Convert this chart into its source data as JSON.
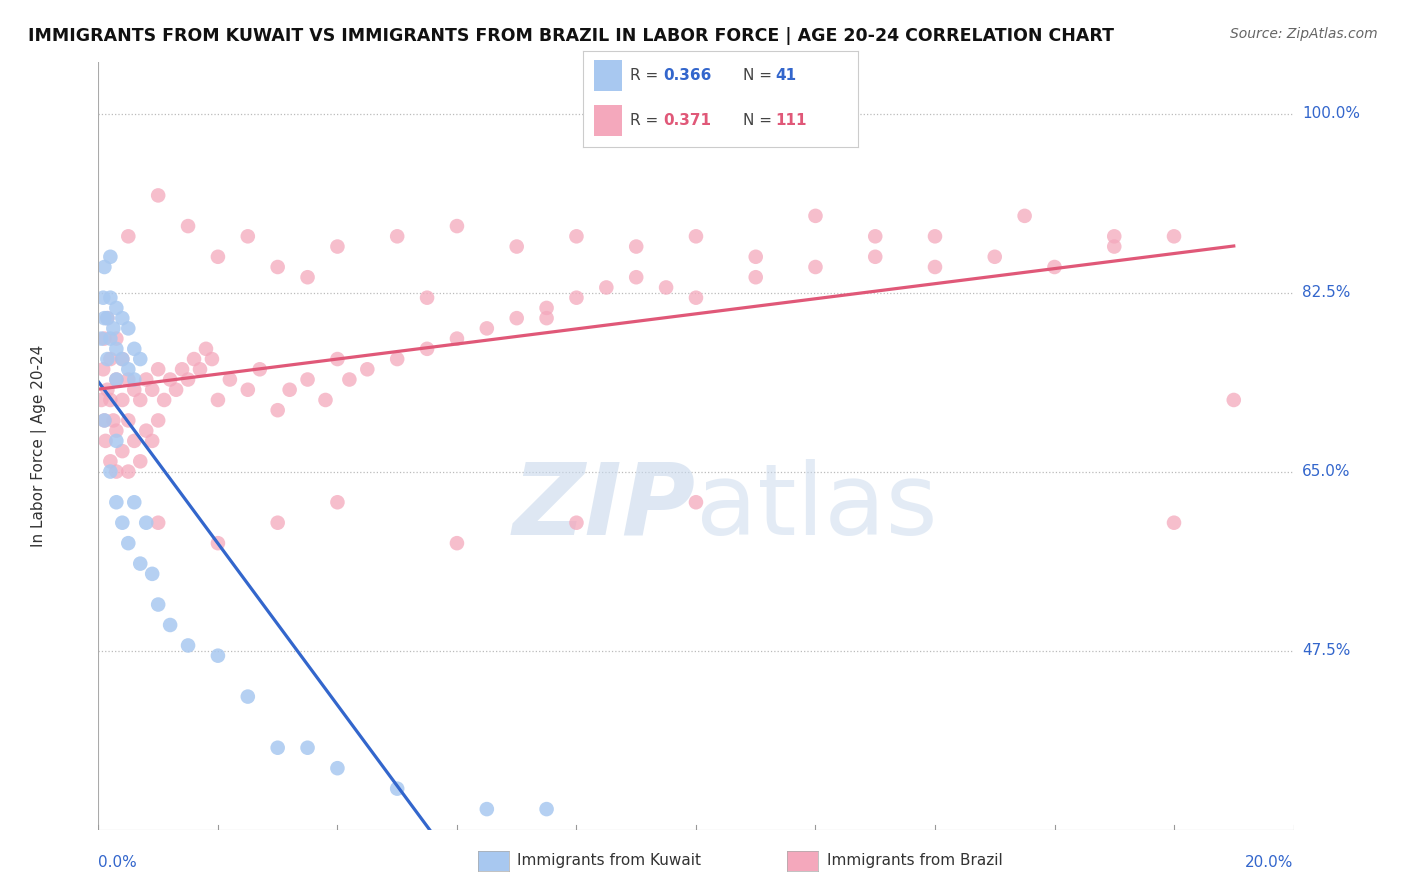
{
  "title": "IMMIGRANTS FROM KUWAIT VS IMMIGRANTS FROM BRAZIL IN LABOR FORCE | AGE 20-24 CORRELATION CHART",
  "source": "Source: ZipAtlas.com",
  "xmin": 0.0,
  "xmax": 0.2,
  "ymin": 0.3,
  "ymax": 1.05,
  "kuwait_R": 0.366,
  "kuwait_N": 41,
  "brazil_R": 0.371,
  "brazil_N": 111,
  "kuwait_color": "#a8c8f0",
  "brazil_color": "#f4a8bc",
  "kuwait_line_color": "#3366cc",
  "brazil_line_color": "#e05878",
  "background_color": "#ffffff",
  "watermark_color": "#c8d8ec",
  "y_tick_vals": [
    1.0,
    0.825,
    0.65,
    0.475
  ],
  "y_tick_labels": [
    "100.0%",
    "82.5%",
    "65.0%",
    "47.5%"
  ]
}
